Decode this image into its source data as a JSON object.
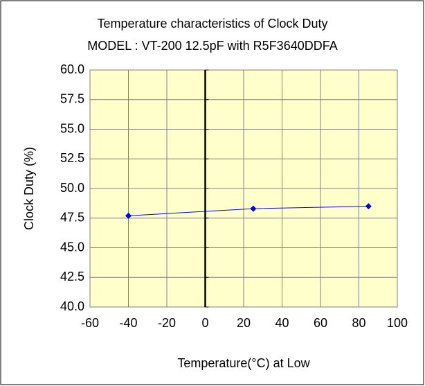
{
  "chart_data": {
    "type": "line",
    "title": "Temperature characteristics of Clock Duty",
    "subtitle": "MODEL : VT-200 12.5pF with R5F3640DDFA",
    "x_label": "Temperature(°C)   at  Low",
    "y_label": "Clock Duty (%)",
    "x": [
      -40,
      25,
      85
    ],
    "series": [
      {
        "name": "Clock Duty",
        "color": "#0000ff",
        "values": [
          47.7,
          48.3,
          48.5
        ]
      }
    ],
    "xlim": [
      -60,
      100
    ],
    "xticks": [
      -60,
      -40,
      -20,
      0,
      20,
      40,
      60,
      80,
      100
    ],
    "ylim": [
      40,
      60
    ],
    "yticks": [
      {
        "value": 40,
        "label": "40.0"
      },
      42.5,
      {
        "value": 45,
        "label": "45.0"
      },
      47.5,
      {
        "value": 50,
        "label": "50.0"
      },
      52.5,
      {
        "value": 55,
        "label": "55.0"
      },
      57.5,
      {
        "value": 60,
        "label": "60.0"
      }
    ],
    "grid": true,
    "plot_background": "#ffffcc"
  }
}
